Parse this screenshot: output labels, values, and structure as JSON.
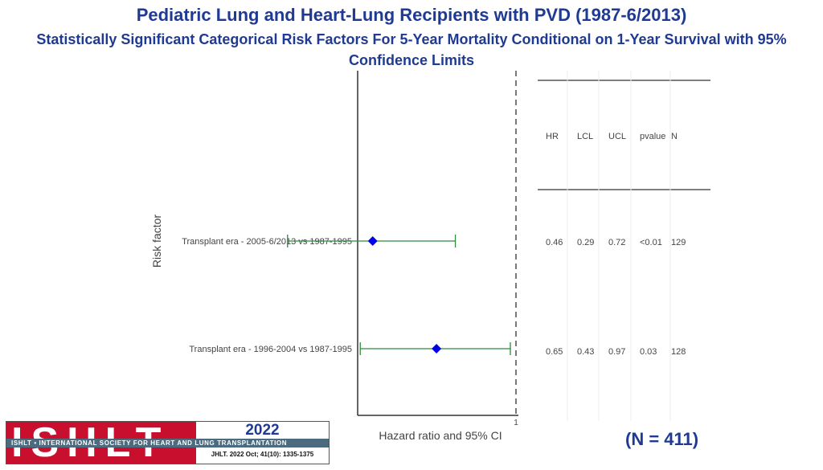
{
  "header": {
    "title": "Pediatric Lung and Heart-Lung Recipients with PVD (1987-6/2013)",
    "subtitle": "Statistically Significant Categorical Risk Factors For 5-Year Mortality Conditional on 1-Year Survival with 95% Confidence Limits"
  },
  "chart_data": {
    "type": "forest",
    "ylabel": "Risk factor",
    "xlabel": "Hazard ratio and 95% CI",
    "reference_line": 1,
    "x_ticks": [
      "1"
    ],
    "table_headers": [
      "HR",
      "LCL",
      "UCL",
      "pvalue",
      "N"
    ],
    "rows": [
      {
        "label": "Transplant era - 2005-6/2013 vs 1987-1995",
        "hr": 0.46,
        "lcl": 0.29,
        "ucl": 0.72,
        "pvalue": "<0.01",
        "n": 129
      },
      {
        "label": "Transplant era - 1996-2004 vs 1987-1995",
        "hr": 0.65,
        "lcl": 0.43,
        "ucl": 0.97,
        "pvalue": "0.03",
        "n": 128
      }
    ],
    "colors": {
      "marker": "#0000e6",
      "ci": "#2e8b3a",
      "axis": "#333333"
    }
  },
  "footer": {
    "n_total": "(N = 411)",
    "logo_text": "ISHLT",
    "logo_band": "ISHLT • INTERNATIONAL SOCIETY FOR HEART AND LUNG TRANSPLANTATION",
    "year": "2022",
    "citation": "JHLT. 2022 Oct; 41(10): 1335-1375"
  }
}
